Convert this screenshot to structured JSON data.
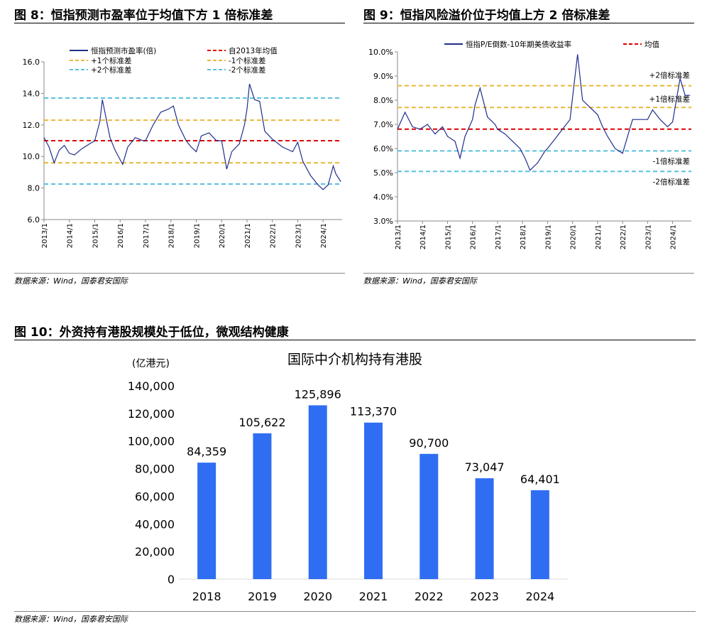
{
  "colors": {
    "line": "#1f2e8c",
    "red": "#e00000",
    "yellow": "#e8b83a",
    "blue": "#5bc0de",
    "bar": "#2f6ef2"
  },
  "fig8": {
    "title": "图 8：恒指预测市盈率位于均值下方 1 倍标准差",
    "source": "数据来源：Wind，国泰君安国际"
  },
  "fig9": {
    "title": "图 9：恒指风险溢价位于均值上方 2 倍标准差",
    "source": "数据来源：Wind，国泰君安国际"
  },
  "fig10": {
    "title": "图 10：外资持有港股规模处于低位，微观结构健康",
    "source": "数据来源：Wind，国泰君安国际"
  },
  "chart_data": [
    {
      "type": "line",
      "id": "fig8",
      "x_labels": [
        "2013/1",
        "2014/1",
        "2015/1",
        "2016/1",
        "2017/1",
        "2018/1",
        "2019/1",
        "2020/1",
        "2021/1",
        "2022/1",
        "2023/1",
        "2024/1"
      ],
      "ylim": [
        6.0,
        16.0
      ],
      "y_ticks": [
        "6.0",
        "8.0",
        "10.0",
        "12.0",
        "14.0",
        "16.0"
      ],
      "series": [
        {
          "name": "恒指预测市盈率(倍)",
          "style": "line",
          "x": [
            2013.0,
            2013.2,
            2013.4,
            2013.6,
            2013.8,
            2014.0,
            2014.2,
            2014.5,
            2014.8,
            2015.0,
            2015.2,
            2015.3,
            2015.4,
            2015.6,
            2015.8,
            2016.0,
            2016.1,
            2016.3,
            2016.6,
            2016.9,
            2017.0,
            2017.3,
            2017.6,
            2017.9,
            2018.1,
            2018.3,
            2018.6,
            2018.8,
            2019.0,
            2019.2,
            2019.5,
            2019.8,
            2020.0,
            2020.2,
            2020.4,
            2020.7,
            2020.9,
            2021.0,
            2021.1,
            2021.3,
            2021.5,
            2021.7,
            2022.0,
            2022.4,
            2022.8,
            2023.0,
            2023.2,
            2023.5,
            2023.8,
            2024.0,
            2024.2,
            2024.4,
            2024.5,
            2024.7
          ],
          "y": [
            11.2,
            10.6,
            9.6,
            10.4,
            10.7,
            10.2,
            10.1,
            10.5,
            10.8,
            11.0,
            12.2,
            13.6,
            12.8,
            11.2,
            10.4,
            9.8,
            9.5,
            10.6,
            11.2,
            11.0,
            11.0,
            12.0,
            12.8,
            13.0,
            13.2,
            12.0,
            11.0,
            10.6,
            10.3,
            11.3,
            11.5,
            11.0,
            11.0,
            9.2,
            10.3,
            10.8,
            12.0,
            13.0,
            14.6,
            13.6,
            13.5,
            11.6,
            11.1,
            10.6,
            10.3,
            10.9,
            9.7,
            8.8,
            8.2,
            7.9,
            8.2,
            9.4,
            8.9,
            8.4
          ]
        },
        {
          "name": "自2013年均值",
          "style": "dashed",
          "value": 11.0
        },
        {
          "name": "+1个标准差",
          "style": "dashed",
          "value": 12.3
        },
        {
          "name": "-1个标准差",
          "style": "dashed",
          "value": 9.6
        },
        {
          "name": "+2个标准差",
          "style": "dashed",
          "value": 13.7
        },
        {
          "name": "-2个标准差",
          "style": "dashed",
          "value": 8.25
        }
      ]
    },
    {
      "type": "line",
      "id": "fig9",
      "x_labels": [
        "2013/1",
        "2014/1",
        "2015/1",
        "2016/1",
        "2017/1",
        "2018/1",
        "2019/1",
        "2020/1",
        "2021/1",
        "2022/1",
        "2023/1",
        "2024/1"
      ],
      "ylim": [
        3.0,
        10.0
      ],
      "y_ticks": [
        "3.0%",
        "4.0%",
        "5.0%",
        "6.0%",
        "7.0%",
        "8.0%",
        "9.0%",
        "10.0%"
      ],
      "series": [
        {
          "name": "恒指P/E倒数-10年期美债收益率",
          "style": "line",
          "x": [
            2013.0,
            2013.3,
            2013.6,
            2013.9,
            2014.2,
            2014.5,
            2014.8,
            2015.0,
            2015.3,
            2015.5,
            2015.7,
            2016.0,
            2016.1,
            2016.3,
            2016.6,
            2016.9,
            2017.0,
            2017.3,
            2017.6,
            2017.9,
            2018.1,
            2018.3,
            2018.6,
            2018.9,
            2019.0,
            2019.3,
            2019.6,
            2019.9,
            2020.0,
            2020.2,
            2020.4,
            2020.7,
            2021.0,
            2021.2,
            2021.4,
            2021.7,
            2022.0,
            2022.4,
            2022.8,
            2023.0,
            2023.2,
            2023.5,
            2023.8,
            2024.0,
            2024.3,
            2024.5,
            2024.7
          ],
          "y": [
            6.8,
            7.5,
            6.9,
            6.8,
            7.0,
            6.6,
            6.9,
            6.5,
            6.3,
            5.6,
            6.5,
            7.2,
            7.8,
            8.5,
            7.3,
            7.0,
            6.8,
            6.6,
            6.3,
            6.0,
            5.6,
            5.1,
            5.4,
            5.9,
            6.0,
            6.4,
            6.8,
            7.2,
            8.1,
            9.9,
            8.0,
            7.7,
            7.4,
            6.9,
            6.5,
            6.0,
            5.8,
            7.2,
            7.2,
            7.2,
            7.6,
            7.2,
            6.9,
            7.1,
            8.9,
            8.2,
            8.2
          ]
        },
        {
          "name": "均值",
          "style": "dashed",
          "value": 6.8
        },
        {
          "name": "+2倍标准差",
          "style": "dashed",
          "value": 8.6
        },
        {
          "name": "+1倍标准差",
          "style": "dashed",
          "value": 7.7
        },
        {
          "name": "-1倍标准差",
          "style": "dashed",
          "value": 5.9
        },
        {
          "name": "-2倍标准差",
          "style": "dashed",
          "value": 5.05
        }
      ]
    },
    {
      "type": "bar",
      "id": "fig10",
      "title": "国际中介机构持有港股",
      "ylabel": "(亿港元)",
      "categories": [
        "2018",
        "2019",
        "2020",
        "2021",
        "2022",
        "2023",
        "2024"
      ],
      "values": [
        84359,
        105622,
        125896,
        113370,
        90700,
        73047,
        64401
      ],
      "value_labels": [
        "84,359",
        "105,622",
        "125,896",
        "113,370",
        "90,700",
        "73,047",
        "64,401"
      ],
      "ylim": [
        0,
        140000
      ],
      "y_ticks": [
        "0",
        "20,000",
        "40,000",
        "60,000",
        "80,000",
        "100,000",
        "120,000",
        "140,000"
      ]
    }
  ]
}
